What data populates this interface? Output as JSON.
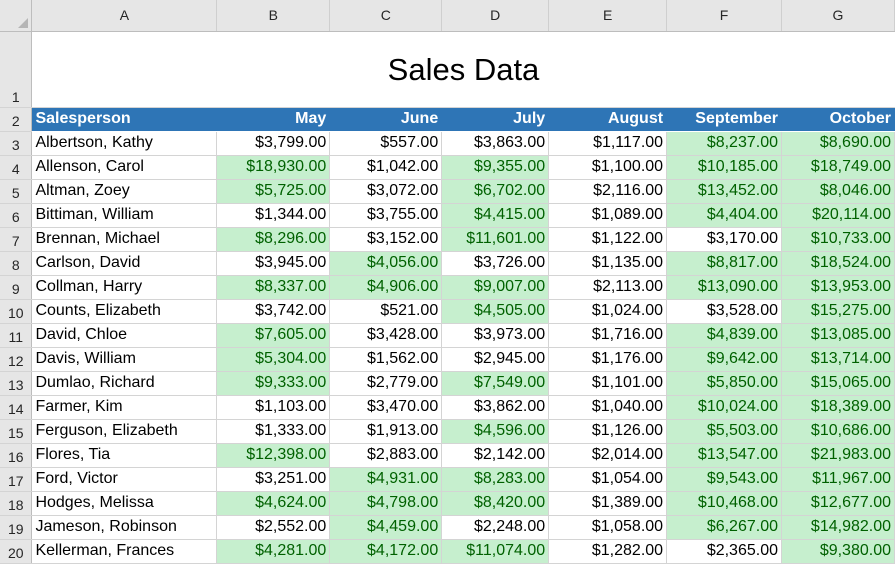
{
  "columns": [
    "A",
    "B",
    "C",
    "D",
    "E",
    "F",
    "G"
  ],
  "title": "Sales Data",
  "header_row_number": "2",
  "title_row_number": "1",
  "headers": [
    "Salesperson",
    "May",
    "June",
    "July",
    "August",
    "September",
    "October"
  ],
  "colors": {
    "highlight_fill": "#c6efce",
    "highlight_text": "#006100",
    "header_fill": "#2e75b6"
  },
  "rows": [
    {
      "num": "3",
      "name": "Albertson, Kathy",
      "values": [
        "$3,799.00",
        "$557.00",
        "$3,863.00",
        "$1,117.00",
        "$8,237.00",
        "$8,690.00"
      ],
      "highlight": [
        false,
        false,
        false,
        false,
        true,
        true
      ]
    },
    {
      "num": "4",
      "name": "Allenson, Carol",
      "values": [
        "$18,930.00",
        "$1,042.00",
        "$9,355.00",
        "$1,100.00",
        "$10,185.00",
        "$18,749.00"
      ],
      "highlight": [
        true,
        false,
        true,
        false,
        true,
        true
      ]
    },
    {
      "num": "5",
      "name": "Altman, Zoey",
      "values": [
        "$5,725.00",
        "$3,072.00",
        "$6,702.00",
        "$2,116.00",
        "$13,452.00",
        "$8,046.00"
      ],
      "highlight": [
        true,
        false,
        true,
        false,
        true,
        true
      ]
    },
    {
      "num": "6",
      "name": "Bittiman, William",
      "values": [
        "$1,344.00",
        "$3,755.00",
        "$4,415.00",
        "$1,089.00",
        "$4,404.00",
        "$20,114.00"
      ],
      "highlight": [
        false,
        false,
        true,
        false,
        true,
        true
      ]
    },
    {
      "num": "7",
      "name": "Brennan, Michael",
      "values": [
        "$8,296.00",
        "$3,152.00",
        "$11,601.00",
        "$1,122.00",
        "$3,170.00",
        "$10,733.00"
      ],
      "highlight": [
        true,
        false,
        true,
        false,
        false,
        true
      ]
    },
    {
      "num": "8",
      "name": "Carlson, David",
      "values": [
        "$3,945.00",
        "$4,056.00",
        "$3,726.00",
        "$1,135.00",
        "$8,817.00",
        "$18,524.00"
      ],
      "highlight": [
        false,
        true,
        false,
        false,
        true,
        true
      ]
    },
    {
      "num": "9",
      "name": "Collman, Harry",
      "values": [
        "$8,337.00",
        "$4,906.00",
        "$9,007.00",
        "$2,113.00",
        "$13,090.00",
        "$13,953.00"
      ],
      "highlight": [
        true,
        true,
        true,
        false,
        true,
        true
      ]
    },
    {
      "num": "10",
      "name": "Counts, Elizabeth",
      "values": [
        "$3,742.00",
        "$521.00",
        "$4,505.00",
        "$1,024.00",
        "$3,528.00",
        "$15,275.00"
      ],
      "highlight": [
        false,
        false,
        true,
        false,
        false,
        true
      ]
    },
    {
      "num": "11",
      "name": "David, Chloe",
      "values": [
        "$7,605.00",
        "$3,428.00",
        "$3,973.00",
        "$1,716.00",
        "$4,839.00",
        "$13,085.00"
      ],
      "highlight": [
        true,
        false,
        false,
        false,
        true,
        true
      ]
    },
    {
      "num": "12",
      "name": "Davis, William",
      "values": [
        "$5,304.00",
        "$1,562.00",
        "$2,945.00",
        "$1,176.00",
        "$9,642.00",
        "$13,714.00"
      ],
      "highlight": [
        true,
        false,
        false,
        false,
        true,
        true
      ]
    },
    {
      "num": "13",
      "name": "Dumlao, Richard",
      "values": [
        "$9,333.00",
        "$2,779.00",
        "$7,549.00",
        "$1,101.00",
        "$5,850.00",
        "$15,065.00"
      ],
      "highlight": [
        true,
        false,
        true,
        false,
        true,
        true
      ]
    },
    {
      "num": "14",
      "name": "Farmer, Kim",
      "values": [
        "$1,103.00",
        "$3,470.00",
        "$3,862.00",
        "$1,040.00",
        "$10,024.00",
        "$18,389.00"
      ],
      "highlight": [
        false,
        false,
        false,
        false,
        true,
        true
      ]
    },
    {
      "num": "15",
      "name": "Ferguson, Elizabeth",
      "values": [
        "$1,333.00",
        "$1,913.00",
        "$4,596.00",
        "$1,126.00",
        "$5,503.00",
        "$10,686.00"
      ],
      "highlight": [
        false,
        false,
        true,
        false,
        true,
        true
      ]
    },
    {
      "num": "16",
      "name": "Flores, Tia",
      "values": [
        "$12,398.00",
        "$2,883.00",
        "$2,142.00",
        "$2,014.00",
        "$13,547.00",
        "$21,983.00"
      ],
      "highlight": [
        true,
        false,
        false,
        false,
        true,
        true
      ]
    },
    {
      "num": "17",
      "name": "Ford, Victor",
      "values": [
        "$3,251.00",
        "$4,931.00",
        "$8,283.00",
        "$1,054.00",
        "$9,543.00",
        "$11,967.00"
      ],
      "highlight": [
        false,
        true,
        true,
        false,
        true,
        true
      ]
    },
    {
      "num": "18",
      "name": "Hodges, Melissa",
      "values": [
        "$4,624.00",
        "$4,798.00",
        "$8,420.00",
        "$1,389.00",
        "$10,468.00",
        "$12,677.00"
      ],
      "highlight": [
        true,
        true,
        true,
        false,
        true,
        true
      ]
    },
    {
      "num": "19",
      "name": "Jameson, Robinson",
      "values": [
        "$2,552.00",
        "$4,459.00",
        "$2,248.00",
        "$1,058.00",
        "$6,267.00",
        "$14,982.00"
      ],
      "highlight": [
        false,
        true,
        false,
        false,
        true,
        true
      ]
    },
    {
      "num": "20",
      "name": "Kellerman, Frances",
      "values": [
        "$4,281.00",
        "$4,172.00",
        "$11,074.00",
        "$1,282.00",
        "$2,365.00",
        "$9,380.00"
      ],
      "highlight": [
        true,
        true,
        true,
        false,
        false,
        true
      ]
    }
  ]
}
